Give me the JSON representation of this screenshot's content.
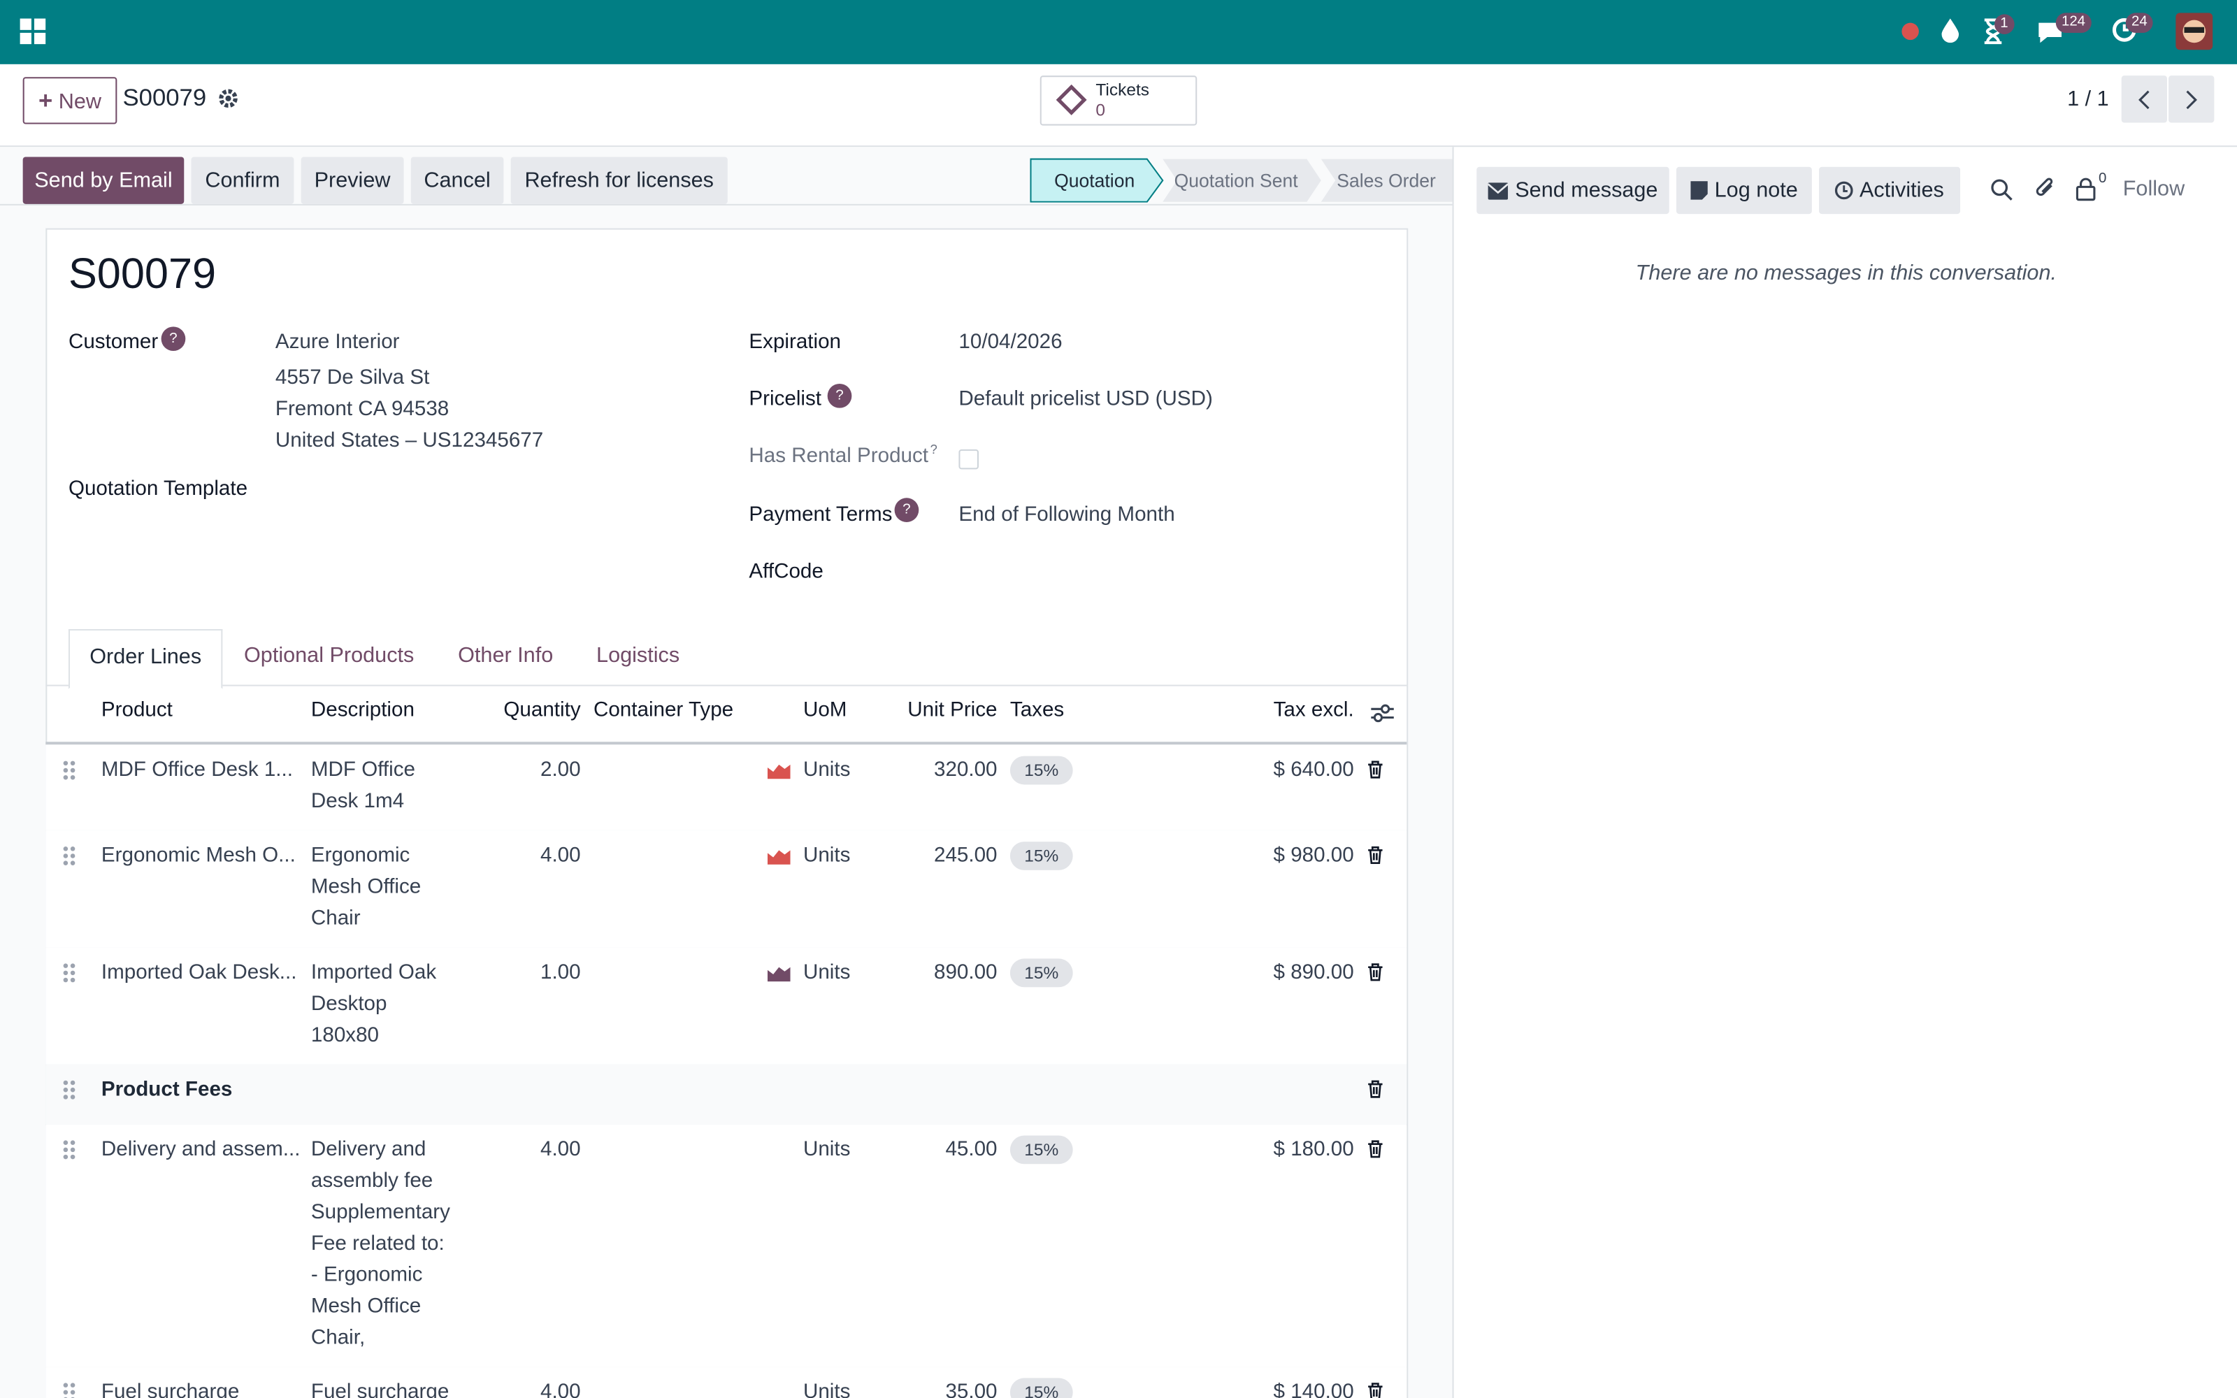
{
  "navbar": {
    "badges": [
      "1",
      "124",
      "24"
    ]
  },
  "control": {
    "new_button": "New",
    "record": "S00079",
    "tickets": {
      "label": "Tickets",
      "count": "0"
    },
    "pager": "1 / 1"
  },
  "actions": [
    "Send by Email",
    "Confirm",
    "Preview",
    "Cancel",
    "Refresh for licenses"
  ],
  "statusbar": [
    "Quotation",
    "Quotation Sent",
    "Sales Order"
  ],
  "help": "?",
  "chatter": {
    "buttons": [
      "Send message",
      "Log note",
      "Activities"
    ],
    "follower_count": "0",
    "follow": "Follow",
    "empty": "There are no messages in this conversation."
  },
  "form": {
    "title": "S00079",
    "customer": {
      "label": "Customer",
      "lines": [
        "Azure Interior",
        "4557 De Silva St",
        "Fremont CA 94538",
        "United States – US12345677"
      ]
    },
    "quotation_template": "Quotation Template",
    "expiration": {
      "label": "Expiration",
      "value": "10/04/2026"
    },
    "pricelist": {
      "label": "Pricelist",
      "value": "Default pricelist USD  (USD)"
    },
    "rental": {
      "label": "Has Rental Product"
    },
    "payment_terms": {
      "label": "Payment Terms",
      "value": "End of Following Month"
    },
    "affcode": {
      "label": "AffCode"
    }
  },
  "tabs": [
    "Order Lines",
    "Optional Products",
    "Other Info",
    "Logistics"
  ],
  "table": {
    "headers": [
      "Product",
      "Description",
      "Quantity",
      "Container Type",
      "UoM",
      "Unit Price",
      "Taxes",
      "Tax excl."
    ],
    "rows": [
      {
        "product": "MDF Office Desk 1...",
        "description": [
          "MDF Office",
          "Desk 1m4"
        ],
        "quantity": "2.00",
        "uom": "Units",
        "uom_icon_color": "#d9534f",
        "unit_price": "320.00",
        "taxes": "15%",
        "subtotal": "$ 640.00"
      },
      {
        "product": "Ergonomic Mesh O...",
        "description": [
          "Ergonomic",
          "Mesh Office",
          "Chair"
        ],
        "quantity": "4.00",
        "uom": "Units",
        "uom_icon_color": "#d9534f",
        "unit_price": "245.00",
        "taxes": "15%",
        "subtotal": "$ 980.00"
      },
      {
        "product": "Imported Oak Desk...",
        "description": [
          "Imported Oak",
          "Desktop",
          "180x80"
        ],
        "quantity": "1.00",
        "uom": "Units",
        "uom_icon_color": "#714b67",
        "unit_price": "890.00",
        "taxes": "15%",
        "subtotal": "$ 890.00"
      },
      {
        "section": "Product Fees"
      },
      {
        "product": "Delivery and assem...",
        "description": [
          "Delivery and",
          "assembly fee",
          "Supplementary",
          "Fee related to:",
          " - Ergonomic",
          "Mesh Office",
          "Chair,"
        ],
        "quantity": "4.00",
        "uom": "Units",
        "unit_price": "45.00",
        "taxes": "15%",
        "subtotal": "$ 180.00"
      },
      {
        "product": "Fuel surcharge",
        "description": [
          "Fuel surcharge"
        ],
        "quantity": "4.00",
        "uom": "Units",
        "unit_price": "35.00",
        "taxes": "15%",
        "subtotal": "$ 140.00"
      }
    ]
  }
}
